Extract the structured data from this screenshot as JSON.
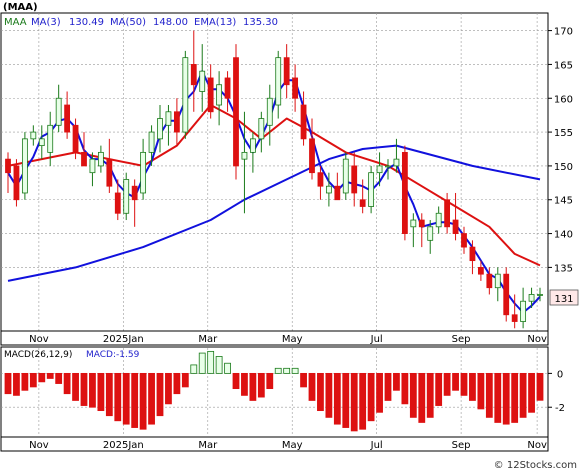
{
  "chart_data": {
    "type": "candlestick",
    "ticker": "(MAA)",
    "legend": [
      {
        "label": "MAA",
        "color": "#000000"
      },
      {
        "label": "MA(3)",
        "value": "130.49",
        "color": "#2222cc"
      },
      {
        "label": "MA(50)",
        "value": "148.00",
        "color": "#2222cc"
      },
      {
        "label": "EMA(13)",
        "value": "135.30",
        "color": "#2222cc"
      }
    ],
    "x_tick_labels": [
      "Nov",
      "2025Jan",
      "Mar",
      "May",
      "Jul",
      "Sep",
      "Nov"
    ],
    "price_y_ticks": [
      135,
      140,
      145,
      150,
      155,
      160,
      165,
      170
    ],
    "price_ylim": [
      125.6,
      172.6
    ],
    "last_price_label": "131",
    "colors": {
      "up": "#e8ffe8",
      "up_edge": "#1a7a1a",
      "down": "#dd1111",
      "ma_short": "#1111dd",
      "ma_long": "#1111dd",
      "ema": "#dd1111",
      "macd_pos": "#1a7a1a",
      "macd_neg": "#dd1111"
    },
    "candles": [
      {
        "o": 151,
        "h": 152,
        "l": 146,
        "c": 149
      },
      {
        "o": 150,
        "h": 151,
        "l": 144,
        "c": 145
      },
      {
        "o": 146,
        "h": 155,
        "l": 145,
        "c": 154
      },
      {
        "o": 154,
        "h": 156,
        "l": 153,
        "c": 155
      },
      {
        "o": 153,
        "h": 156,
        "l": 151,
        "c": 154
      },
      {
        "o": 152,
        "h": 158,
        "l": 150,
        "c": 156
      },
      {
        "o": 156,
        "h": 162,
        "l": 155,
        "c": 160
      },
      {
        "o": 159,
        "h": 161,
        "l": 154,
        "c": 155
      },
      {
        "o": 156,
        "h": 157,
        "l": 151,
        "c": 152
      },
      {
        "o": 152,
        "h": 155,
        "l": 150,
        "c": 150
      },
      {
        "o": 149,
        "h": 152,
        "l": 147,
        "c": 151
      },
      {
        "o": 150,
        "h": 153,
        "l": 149,
        "c": 152
      },
      {
        "o": 151,
        "h": 154,
        "l": 146,
        "c": 147
      },
      {
        "o": 146,
        "h": 148,
        "l": 142,
        "c": 143
      },
      {
        "o": 143,
        "h": 149,
        "l": 142,
        "c": 148
      },
      {
        "o": 147,
        "h": 148,
        "l": 141,
        "c": 145
      },
      {
        "o": 146,
        "h": 154,
        "l": 145,
        "c": 152
      },
      {
        "o": 152,
        "h": 156,
        "l": 150,
        "c": 155
      },
      {
        "o": 154,
        "h": 159,
        "l": 152,
        "c": 157
      },
      {
        "o": 156,
        "h": 159,
        "l": 153,
        "c": 158
      },
      {
        "o": 158,
        "h": 160,
        "l": 153,
        "c": 155
      },
      {
        "o": 155,
        "h": 167,
        "l": 154,
        "c": 166
      },
      {
        "o": 165,
        "h": 170,
        "l": 158,
        "c": 162
      },
      {
        "o": 161,
        "h": 168,
        "l": 158,
        "c": 164
      },
      {
        "o": 163,
        "h": 165,
        "l": 157,
        "c": 158
      },
      {
        "o": 159,
        "h": 164,
        "l": 156,
        "c": 162
      },
      {
        "o": 163,
        "h": 164,
        "l": 158,
        "c": 160
      },
      {
        "o": 166,
        "h": 168,
        "l": 148,
        "c": 150
      },
      {
        "o": 151,
        "h": 158,
        "l": 143,
        "c": 152
      },
      {
        "o": 152,
        "h": 155,
        "l": 149,
        "c": 154
      },
      {
        "o": 154,
        "h": 158,
        "l": 152,
        "c": 157
      },
      {
        "o": 156,
        "h": 162,
        "l": 153,
        "c": 160
      },
      {
        "o": 159,
        "h": 167,
        "l": 157,
        "c": 166
      },
      {
        "o": 166,
        "h": 168,
        "l": 160,
        "c": 162
      },
      {
        "o": 163,
        "h": 165,
        "l": 158,
        "c": 160
      },
      {
        "o": 159,
        "h": 161,
        "l": 153,
        "c": 154
      },
      {
        "o": 154,
        "h": 157,
        "l": 148,
        "c": 149
      },
      {
        "o": 149,
        "h": 150,
        "l": 145,
        "c": 147
      },
      {
        "o": 146,
        "h": 149,
        "l": 144,
        "c": 147
      },
      {
        "o": 147,
        "h": 149,
        "l": 145,
        "c": 145
      },
      {
        "o": 146,
        "h": 152,
        "l": 145,
        "c": 151
      },
      {
        "o": 150,
        "h": 152,
        "l": 144,
        "c": 146
      },
      {
        "o": 145,
        "h": 148,
        "l": 143,
        "c": 144
      },
      {
        "o": 144,
        "h": 150,
        "l": 143,
        "c": 149
      },
      {
        "o": 149,
        "h": 152,
        "l": 147,
        "c": 150
      },
      {
        "o": 150,
        "h": 151,
        "l": 148,
        "c": 150
      },
      {
        "o": 150,
        "h": 154,
        "l": 149,
        "c": 151
      },
      {
        "o": 152,
        "h": 153,
        "l": 139,
        "c": 140
      },
      {
        "o": 141,
        "h": 143,
        "l": 138,
        "c": 142
      },
      {
        "o": 142,
        "h": 143,
        "l": 138,
        "c": 141
      },
      {
        "o": 139,
        "h": 142,
        "l": 137,
        "c": 141
      },
      {
        "o": 141,
        "h": 144,
        "l": 140,
        "c": 143
      },
      {
        "o": 145,
        "h": 146,
        "l": 140,
        "c": 141
      },
      {
        "o": 142,
        "h": 146,
        "l": 139,
        "c": 140
      },
      {
        "o": 140,
        "h": 141,
        "l": 137,
        "c": 138
      },
      {
        "o": 138,
        "h": 139,
        "l": 134,
        "c": 136
      },
      {
        "o": 135,
        "h": 136,
        "l": 133,
        "c": 134
      },
      {
        "o": 134,
        "h": 135,
        "l": 131,
        "c": 132
      },
      {
        "o": 132,
        "h": 135,
        "l": 130,
        "c": 134
      },
      {
        "o": 134,
        "h": 135,
        "l": 127,
        "c": 128
      },
      {
        "o": 128,
        "h": 131,
        "l": 126,
        "c": 127
      },
      {
        "o": 127,
        "h": 132,
        "l": 126,
        "c": 130
      },
      {
        "o": 130,
        "h": 132,
        "l": 129,
        "c": 131
      },
      {
        "o": 131,
        "h": 132,
        "l": 130,
        "c": 131
      }
    ],
    "ma50": [
      {
        "i": 0,
        "v": 133
      },
      {
        "i": 8,
        "v": 135
      },
      {
        "i": 16,
        "v": 138
      },
      {
        "i": 24,
        "v": 142
      },
      {
        "i": 28,
        "v": 145
      },
      {
        "i": 33,
        "v": 148
      },
      {
        "i": 38,
        "v": 151
      },
      {
        "i": 42,
        "v": 152.5
      },
      {
        "i": 46,
        "v": 153
      },
      {
        "i": 49,
        "v": 152
      },
      {
        "i": 55,
        "v": 150
      },
      {
        "i": 63,
        "v": 148
      }
    ],
    "ema13": [
      {
        "i": 0,
        "v": 150
      },
      {
        "i": 4,
        "v": 151
      },
      {
        "i": 8,
        "v": 152
      },
      {
        "i": 12,
        "v": 151
      },
      {
        "i": 16,
        "v": 150
      },
      {
        "i": 20,
        "v": 153
      },
      {
        "i": 24,
        "v": 159
      },
      {
        "i": 27,
        "v": 157
      },
      {
        "i": 30,
        "v": 154
      },
      {
        "i": 33,
        "v": 157
      },
      {
        "i": 36,
        "v": 155
      },
      {
        "i": 40,
        "v": 152
      },
      {
        "i": 45,
        "v": 150
      },
      {
        "i": 49,
        "v": 147
      },
      {
        "i": 53,
        "v": 144
      },
      {
        "i": 57,
        "v": 141
      },
      {
        "i": 60,
        "v": 137
      },
      {
        "i": 63,
        "v": 135.3
      }
    ],
    "macd": {
      "label": "MACD(26,12,9)",
      "value_label": "MACD:-1.59",
      "y_ticks": [
        0,
        -2
      ],
      "ylim": [
        -3.7,
        1.5
      ],
      "values": [
        -1.2,
        -1.3,
        -1.0,
        -0.8,
        -0.5,
        -0.3,
        -0.6,
        -1.2,
        -1.6,
        -1.9,
        -2.0,
        -2.2,
        -2.5,
        -2.8,
        -3.0,
        -3.2,
        -3.3,
        -3.0,
        -2.5,
        -1.8,
        -1.2,
        -0.8,
        0.5,
        1.2,
        1.3,
        1.0,
        0.6,
        -0.9,
        -1.3,
        -1.6,
        -1.4,
        -0.9,
        0.3,
        0.3,
        0.3,
        -0.8,
        -1.6,
        -2.2,
        -2.6,
        -3.0,
        -3.2,
        -3.4,
        -3.3,
        -2.8,
        -2.3,
        -1.6,
        -1.0,
        -1.8,
        -2.6,
        -2.9,
        -2.6,
        -1.9,
        -1.3,
        -1.0,
        -1.3,
        -1.6,
        -2.1,
        -2.6,
        -2.9,
        -3.0,
        -2.9,
        -2.6,
        -2.3,
        -1.59
      ]
    }
  },
  "watermark": "© 12Stocks.com"
}
